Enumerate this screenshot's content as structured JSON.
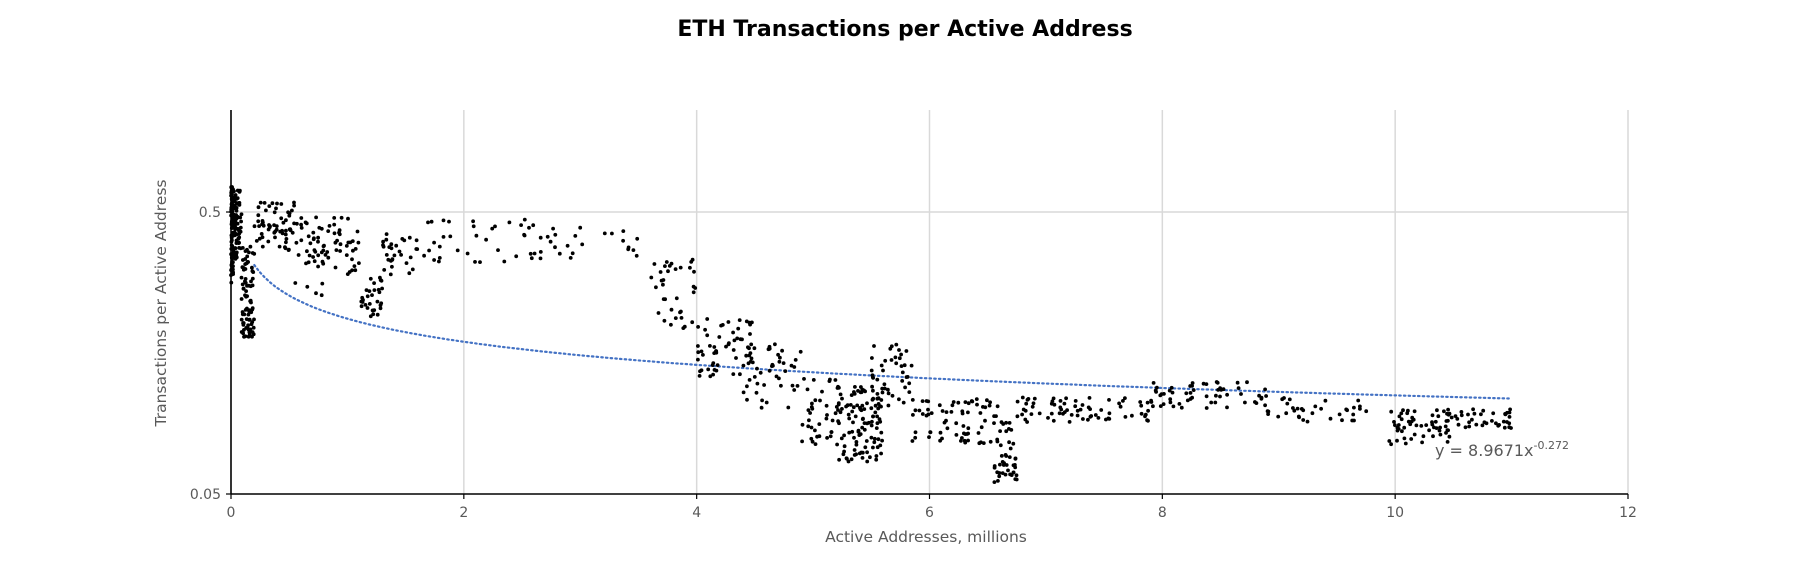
{
  "chart_data": {
    "type": "scatter",
    "title": "ETH Transactions per Active Address",
    "xlabel": "Active Addresses,  millions",
    "ylabel": "Transactions per Active Address",
    "xlim": [
      0,
      12
    ],
    "ylim": [
      0.05,
      1.15
    ],
    "y_scale": "log",
    "x_ticks": [
      0,
      2,
      4,
      6,
      8,
      10,
      12
    ],
    "x_tick_labels": [
      "0",
      "2",
      "4",
      "6",
      "8",
      "10",
      "12"
    ],
    "y_ticks": [
      0.05,
      0.5
    ],
    "y_tick_labels": [
      "0.05",
      "0.5"
    ],
    "grid": true,
    "marker_color": "#000000",
    "trendline": {
      "type": "power",
      "coefficient": 8.9671,
      "exponent": -0.272,
      "x_range": [
        0.2,
        11.0
      ],
      "color": "#4472c4",
      "style": "dotted",
      "equation_base": "y = 8.9671x",
      "equation_exp": "-0.272"
    },
    "clusters": [
      {
        "x": [
          0.0,
          0.02
        ],
        "y": [
          0.28,
          0.62
        ],
        "n": 90
      },
      {
        "x": [
          0.02,
          0.09
        ],
        "y": [
          0.34,
          0.6
        ],
        "n": 70
      },
      {
        "x": [
          0.09,
          0.2
        ],
        "y": [
          0.18,
          0.38
        ],
        "n": 80
      },
      {
        "x": [
          0.2,
          0.55
        ],
        "y": [
          0.36,
          0.55
        ],
        "n": 60
      },
      {
        "x": [
          0.55,
          0.8
        ],
        "y": [
          0.25,
          0.48
        ],
        "n": 40
      },
      {
        "x": [
          0.8,
          1.1
        ],
        "y": [
          0.3,
          0.48
        ],
        "n": 35
      },
      {
        "x": [
          1.1,
          1.3
        ],
        "y": [
          0.21,
          0.3
        ],
        "n": 30
      },
      {
        "x": [
          1.3,
          1.6
        ],
        "y": [
          0.3,
          0.42
        ],
        "n": 30
      },
      {
        "x": [
          1.6,
          2.6
        ],
        "y": [
          0.33,
          0.47
        ],
        "n": 35
      },
      {
        "x": [
          2.6,
          3.6
        ],
        "y": [
          0.34,
          0.45
        ],
        "n": 25
      },
      {
        "x": [
          3.6,
          4.0
        ],
        "y": [
          0.19,
          0.34
        ],
        "n": 35
      },
      {
        "x": [
          4.0,
          4.5
        ],
        "y": [
          0.13,
          0.21
        ],
        "n": 55
      },
      {
        "x": [
          4.4,
          4.9
        ],
        "y": [
          0.1,
          0.17
        ],
        "n": 45
      },
      {
        "x": [
          4.9,
          5.2
        ],
        "y": [
          0.075,
          0.13
        ],
        "n": 35
      },
      {
        "x": [
          5.2,
          5.6
        ],
        "y": [
          0.065,
          0.12
        ],
        "n": 110
      },
      {
        "x": [
          5.5,
          5.85
        ],
        "y": [
          0.1,
          0.17
        ],
        "n": 45
      },
      {
        "x": [
          5.85,
          6.6
        ],
        "y": [
          0.075,
          0.11
        ],
        "n": 70
      },
      {
        "x": [
          6.55,
          6.75
        ],
        "y": [
          0.055,
          0.09
        ],
        "n": 45
      },
      {
        "x": [
          6.75,
          7.9
        ],
        "y": [
          0.09,
          0.11
        ],
        "n": 70
      },
      {
        "x": [
          7.9,
          8.9
        ],
        "y": [
          0.1,
          0.125
        ],
        "n": 60
      },
      {
        "x": [
          8.9,
          9.8
        ],
        "y": [
          0.09,
          0.11
        ],
        "n": 35
      },
      {
        "x": [
          9.9,
          10.5
        ],
        "y": [
          0.075,
          0.1
        ],
        "n": 60
      },
      {
        "x": [
          10.5,
          11.0
        ],
        "y": [
          0.085,
          0.1
        ],
        "n": 35
      }
    ]
  }
}
